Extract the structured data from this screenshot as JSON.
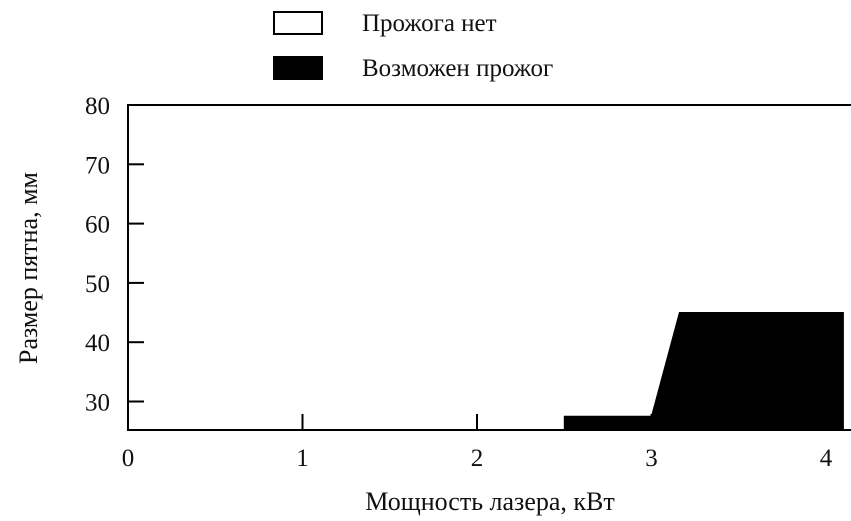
{
  "chart_data": {
    "type": "area",
    "title": "",
    "xlabel": "Мощность лазера, кВт",
    "ylabel": "Размер пятна, мм",
    "xlim": [
      0,
      4.1
    ],
    "ylim": [
      25,
      80
    ],
    "xticks": [
      0,
      1,
      2,
      3,
      4
    ],
    "yticks": [
      30,
      40,
      50,
      60,
      70,
      80
    ],
    "xtick_labels": [
      "0",
      "1",
      "2",
      "3",
      "4"
    ],
    "ytick_labels": [
      "30",
      "40",
      "50",
      "60",
      "70",
      "80"
    ],
    "grid": false,
    "legend_position": "top-center",
    "series": [
      {
        "name": "Прожога нет",
        "color": "#ffffff",
        "style": "open-box",
        "points": []
      },
      {
        "name": "Возможен прожог",
        "color": "#000000",
        "style": "filled",
        "points": [
          {
            "x": 2.5,
            "y": 25
          },
          {
            "x": 2.5,
            "y": 27.5
          },
          {
            "x": 3.0,
            "y": 27.5
          },
          {
            "x": 3.16,
            "y": 45
          },
          {
            "x": 4.1,
            "y": 45
          },
          {
            "x": 4.1,
            "y": 25
          }
        ]
      }
    ]
  }
}
